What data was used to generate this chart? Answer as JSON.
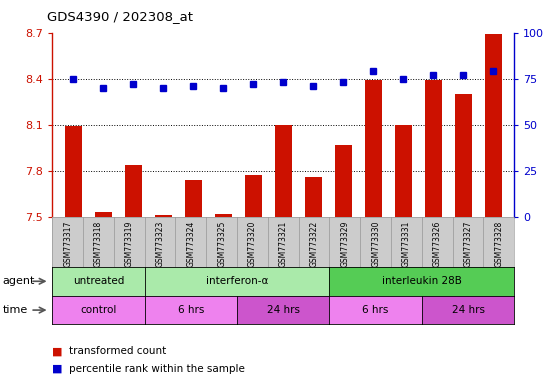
{
  "title": "GDS4390 / 202308_at",
  "samples": [
    "GSM773317",
    "GSM773318",
    "GSM773319",
    "GSM773323",
    "GSM773324",
    "GSM773325",
    "GSM773320",
    "GSM773321",
    "GSM773322",
    "GSM773329",
    "GSM773330",
    "GSM773331",
    "GSM773326",
    "GSM773327",
    "GSM773328"
  ],
  "red_values": [
    8.09,
    7.53,
    7.84,
    7.51,
    7.74,
    7.52,
    7.77,
    8.1,
    7.76,
    7.97,
    8.39,
    8.1,
    8.39,
    8.3,
    8.69
  ],
  "blue_values": [
    75,
    70,
    72,
    70,
    71,
    70,
    72,
    73,
    71,
    73,
    79,
    75,
    77,
    77,
    79
  ],
  "ylim_left": [
    7.5,
    8.7
  ],
  "ylim_right": [
    0,
    100
  ],
  "yticks_left": [
    7.5,
    7.8,
    8.1,
    8.4,
    8.7
  ],
  "yticks_right": [
    0,
    25,
    50,
    75,
    100
  ],
  "agent_groups": [
    {
      "label": "untreated",
      "start": 0,
      "end": 3,
      "color": "#aaeaaa"
    },
    {
      "label": "interferon-α",
      "start": 3,
      "end": 9,
      "color": "#aaeaaa"
    },
    {
      "label": "interleukin 28B",
      "start": 9,
      "end": 15,
      "color": "#55cc55"
    }
  ],
  "time_groups": [
    {
      "label": "control",
      "start": 0,
      "end": 3,
      "color": "#ee82ee"
    },
    {
      "label": "6 hrs",
      "start": 3,
      "end": 6,
      "color": "#ee82ee"
    },
    {
      "label": "24 hrs",
      "start": 6,
      "end": 9,
      "color": "#cc55cc"
    },
    {
      "label": "6 hrs",
      "start": 9,
      "end": 12,
      "color": "#ee82ee"
    },
    {
      "label": "24 hrs",
      "start": 12,
      "end": 15,
      "color": "#cc55cc"
    }
  ],
  "bar_color": "#cc1100",
  "dot_color": "#0000cc",
  "grid_color": "#000000",
  "left_axis_color": "#cc1100",
  "right_axis_color": "#0000cc",
  "tick_area_color": "#cccccc",
  "bar_width": 0.55
}
